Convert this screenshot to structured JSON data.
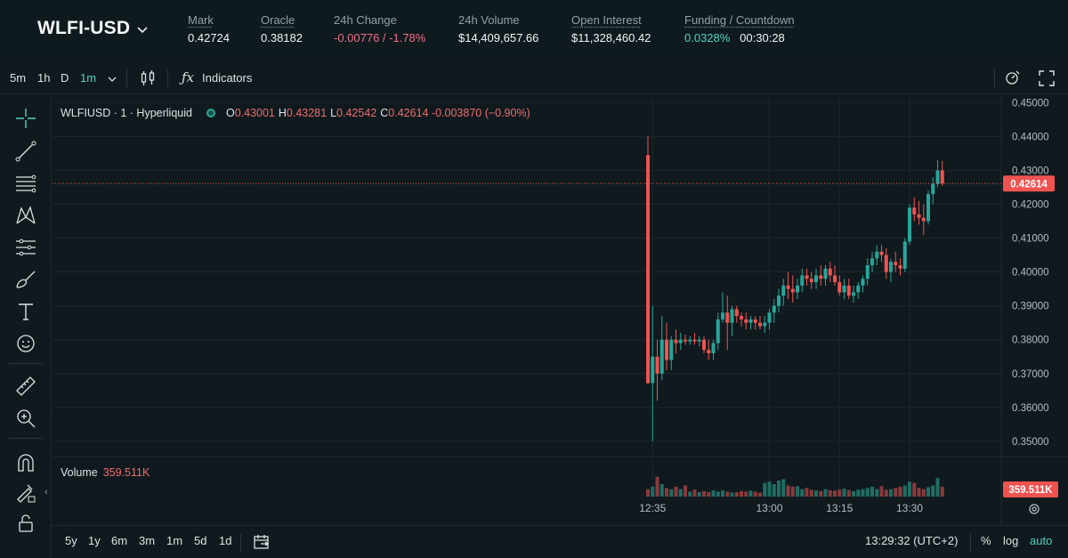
{
  "market": {
    "symbol": "WLFI-USD",
    "stats": [
      {
        "label": "Mark",
        "value": "0.42724",
        "underline": true
      },
      {
        "label": "Oracle",
        "value": "0.38182",
        "underline": true
      },
      {
        "label": "24h Change",
        "value": "-0.00776 / -1.78%",
        "underline": false
      },
      {
        "label": "24h Volume",
        "value": "$14,409,657.66",
        "underline": false
      },
      {
        "label": "Open Interest",
        "value": "$11,328,460.42",
        "underline": true
      },
      {
        "label": "Funding / Countdown",
        "value_a": "0.0328%",
        "value_b": "00:30:28",
        "underline": true
      }
    ]
  },
  "toolbar": {
    "intervals": [
      "5m",
      "1h",
      "D",
      "1m"
    ],
    "active_interval": "1m",
    "indicators_label": "Indicators"
  },
  "legend": {
    "title": "WLFIUSD · 1 · Hyperliquid",
    "o_key": "O",
    "o": "0.43001",
    "h_key": "H",
    "h": "0.43281",
    "l_key": "L",
    "l": "0.42542",
    "c_key": "C",
    "c": "0.42614",
    "change": "-0.003870 (−0.90%)"
  },
  "volume_legend": {
    "label": "Volume",
    "value": "359.511K"
  },
  "bottom_bar": {
    "ranges": [
      "5y",
      "1y",
      "6m",
      "3m",
      "1m",
      "5d",
      "1d"
    ],
    "time": "13:29:32 (UTC+2)",
    "percent": "%",
    "log": "log",
    "auto": "auto"
  },
  "colors": {
    "up": "#26a69a",
    "down": "#ef5350",
    "accent": "#50d2c1",
    "negative": "#ed7088"
  },
  "chart_data": {
    "type": "candlestick",
    "interval": "1m",
    "y_ticks": [
      0.35,
      0.36,
      0.37,
      0.38,
      0.39,
      0.4,
      0.41,
      0.42,
      0.43,
      0.44,
      0.45
    ],
    "ylim": [
      0.3455,
      0.4522
    ],
    "x_ticks": [
      "12:35",
      "13:00",
      "13:15",
      "13:30"
    ],
    "last_price_label": "0.42614",
    "last_volume_label": "359.511K",
    "start_time": "12:34",
    "ohlc": [
      [
        0.4345,
        0.44,
        0.367,
        0.3672
      ],
      [
        0.3672,
        0.39,
        0.35,
        0.375
      ],
      [
        0.375,
        0.38,
        0.362,
        0.37
      ],
      [
        0.37,
        0.387,
        0.368,
        0.38
      ],
      [
        0.38,
        0.385,
        0.371,
        0.374
      ],
      [
        0.374,
        0.381,
        0.371,
        0.38
      ],
      [
        0.38,
        0.383,
        0.376,
        0.379
      ],
      [
        0.379,
        0.382,
        0.377,
        0.38
      ],
      [
        0.38,
        0.3815,
        0.3785,
        0.3795
      ],
      [
        0.3795,
        0.381,
        0.3785,
        0.38
      ],
      [
        0.38,
        0.382,
        0.3785,
        0.3795
      ],
      [
        0.3795,
        0.381,
        0.378,
        0.38
      ],
      [
        0.38,
        0.381,
        0.376,
        0.377
      ],
      [
        0.377,
        0.38,
        0.374,
        0.376
      ],
      [
        0.376,
        0.38,
        0.374,
        0.379
      ],
      [
        0.379,
        0.388,
        0.377,
        0.386
      ],
      [
        0.386,
        0.394,
        0.385,
        0.388
      ],
      [
        0.388,
        0.393,
        0.377,
        0.385
      ],
      [
        0.385,
        0.39,
        0.381,
        0.389
      ],
      [
        0.389,
        0.39,
        0.385,
        0.387
      ],
      [
        0.387,
        0.388,
        0.384,
        0.386
      ],
      [
        0.386,
        0.388,
        0.383,
        0.385
      ],
      [
        0.385,
        0.387,
        0.383,
        0.386
      ],
      [
        0.386,
        0.387,
        0.383,
        0.385
      ],
      [
        0.385,
        0.387,
        0.383,
        0.384
      ],
      [
        0.384,
        0.387,
        0.382,
        0.385
      ],
      [
        0.385,
        0.389,
        0.383,
        0.388
      ],
      [
        0.388,
        0.392,
        0.385,
        0.39
      ],
      [
        0.39,
        0.395,
        0.388,
        0.393
      ],
      [
        0.393,
        0.398,
        0.39,
        0.396
      ],
      [
        0.396,
        0.4,
        0.392,
        0.395
      ],
      [
        0.395,
        0.399,
        0.391,
        0.394
      ],
      [
        0.394,
        0.398,
        0.392,
        0.396
      ],
      [
        0.396,
        0.401,
        0.394,
        0.399
      ],
      [
        0.399,
        0.401,
        0.396,
        0.398
      ],
      [
        0.398,
        0.4,
        0.395,
        0.397
      ],
      [
        0.397,
        0.401,
        0.395,
        0.399
      ],
      [
        0.399,
        0.402,
        0.396,
        0.398
      ],
      [
        0.398,
        0.402,
        0.396,
        0.401
      ],
      [
        0.401,
        0.403,
        0.397,
        0.399
      ],
      [
        0.399,
        0.402,
        0.396,
        0.397
      ],
      [
        0.397,
        0.399,
        0.393,
        0.394
      ],
      [
        0.394,
        0.398,
        0.392,
        0.396
      ],
      [
        0.396,
        0.398,
        0.392,
        0.393
      ],
      [
        0.393,
        0.396,
        0.391,
        0.394
      ],
      [
        0.394,
        0.397,
        0.392,
        0.396
      ],
      [
        0.396,
        0.399,
        0.394,
        0.398
      ],
      [
        0.398,
        0.404,
        0.396,
        0.402
      ],
      [
        0.402,
        0.406,
        0.4,
        0.404
      ],
      [
        0.404,
        0.408,
        0.402,
        0.406
      ],
      [
        0.406,
        0.408,
        0.403,
        0.405
      ],
      [
        0.405,
        0.407,
        0.398,
        0.4
      ],
      [
        0.4,
        0.404,
        0.397,
        0.403
      ],
      [
        0.403,
        0.406,
        0.4,
        0.402
      ],
      [
        0.402,
        0.404,
        0.399,
        0.401
      ],
      [
        0.401,
        0.41,
        0.4,
        0.409
      ],
      [
        0.409,
        0.42,
        0.408,
        0.419
      ],
      [
        0.419,
        0.422,
        0.415,
        0.417
      ],
      [
        0.417,
        0.421,
        0.414,
        0.416
      ],
      [
        0.416,
        0.42,
        0.411,
        0.415
      ],
      [
        0.415,
        0.424,
        0.414,
        0.423
      ],
      [
        0.423,
        0.428,
        0.42,
        0.426
      ],
      [
        0.426,
        0.433,
        0.425,
        0.43
      ],
      [
        0.43,
        0.4328,
        0.4254,
        0.4261
      ]
    ],
    "volume": [
      30,
      40,
      80,
      50,
      35,
      30,
      40,
      30,
      45,
      20,
      28,
      18,
      22,
      18,
      25,
      20,
      25,
      20,
      16,
      18,
      22,
      20,
      24,
      20,
      16,
      55,
      60,
      50,
      65,
      70,
      45,
      40,
      42,
      30,
      35,
      28,
      25,
      22,
      30,
      26,
      24,
      28,
      32,
      26,
      22,
      28,
      30,
      35,
      40,
      30,
      42,
      28,
      30,
      35,
      40,
      45,
      60,
      55,
      35,
      30,
      38,
      45,
      75,
      40
    ],
    "volume_max": 140
  }
}
